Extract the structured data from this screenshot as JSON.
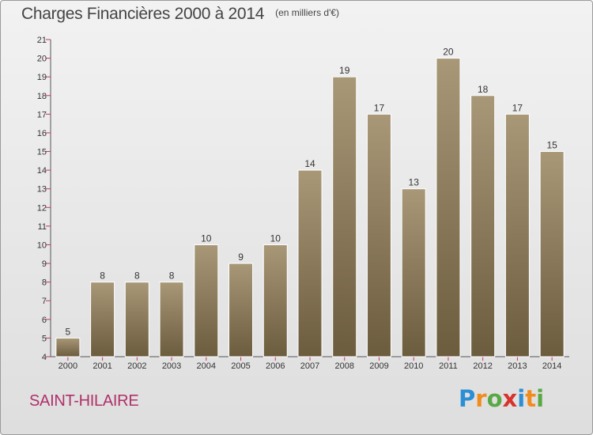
{
  "header": {
    "title": "Charges Financières 2000 à 2014",
    "unit": "(en milliers d'€)"
  },
  "footer": {
    "commune": "SAINT-HILAIRE",
    "logo_text": "Proxiti",
    "logo_letters": [
      {
        "ch": "P",
        "color": "#2c8fd6"
      },
      {
        "ch": "r",
        "color": "#f08c1e"
      },
      {
        "ch": "o",
        "color": "#5aa845"
      },
      {
        "ch": "x",
        "color": "#d9322e"
      },
      {
        "ch": "i",
        "color": "#2c8fd6"
      },
      {
        "ch": "t",
        "color": "#f08c1e"
      },
      {
        "ch": "i",
        "color": "#5aa845"
      }
    ]
  },
  "chart_data": {
    "type": "bar",
    "title": "Charges Financières 2000 à 2014",
    "subtitle": "(en milliers d'€)",
    "categories": [
      "2000",
      "2001",
      "2002",
      "2003",
      "2004",
      "2005",
      "2006",
      "2007",
      "2008",
      "2009",
      "2010",
      "2011",
      "2012",
      "2013",
      "2014"
    ],
    "values": [
      5,
      8,
      8,
      8,
      10,
      9,
      10,
      14,
      19,
      17,
      13,
      20,
      18,
      17,
      15
    ],
    "ylim": [
      4,
      21
    ],
    "yticks": [
      4,
      5,
      6,
      7,
      8,
      9,
      10,
      11,
      12,
      13,
      14,
      15,
      16,
      17,
      18,
      19,
      20,
      21
    ],
    "grid": false,
    "bar_color_top": "#a89878",
    "bar_color_bottom": "#6c5c3e",
    "axis_tick_color": "#d0306a"
  }
}
